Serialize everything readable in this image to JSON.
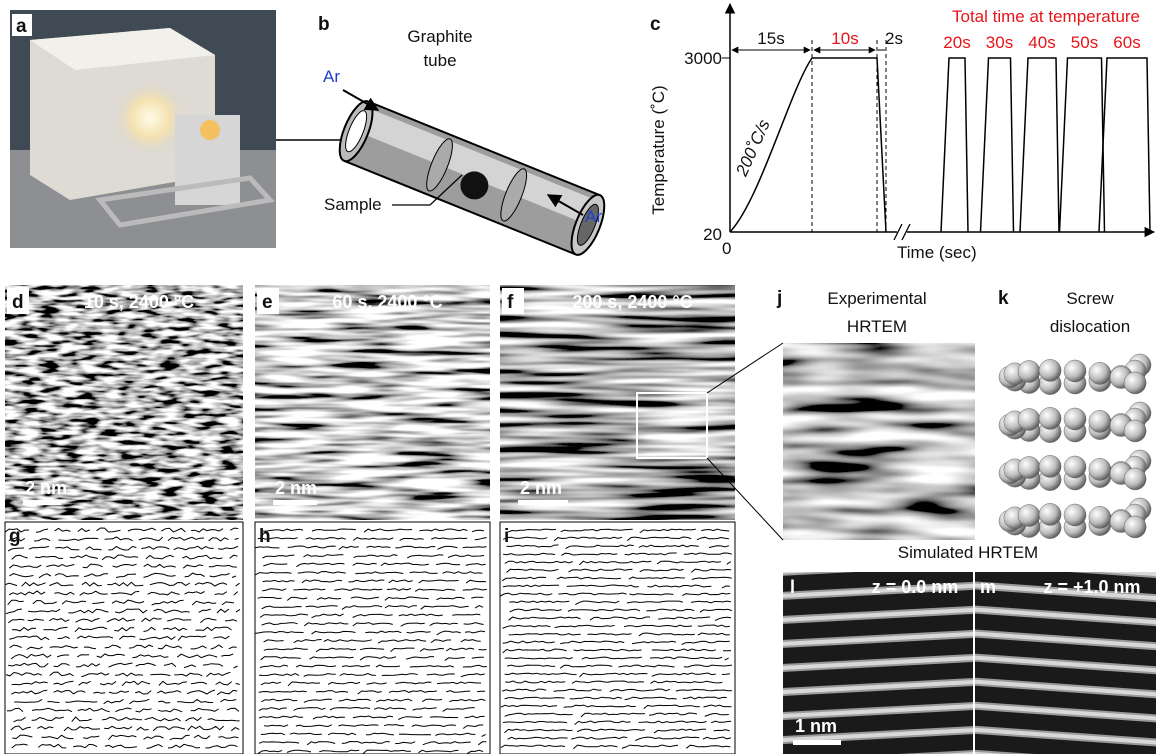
{
  "panel_labels": [
    "a",
    "b",
    "c",
    "d",
    "e",
    "f",
    "g",
    "h",
    "i",
    "j",
    "k",
    "l",
    "m"
  ],
  "schematic": {
    "tube_label": [
      "Graphite",
      "tube"
    ],
    "gas_in": "Ar",
    "gas_out": "Ar",
    "sample": "Sample"
  },
  "heating_profile": {
    "y_axis": "Temperature (˚C)",
    "y_ticks": [
      "3000",
      "20"
    ],
    "x_origin": "0",
    "x_axis": "Time (sec)",
    "ramp_time": "15s",
    "hold_time": "10s",
    "cool_time": "2s",
    "ramp_rate": "200˚C/s",
    "series_title": "Total time at temperature",
    "series_times": [
      "20s",
      "30s",
      "40s",
      "50s",
      "60s"
    ]
  },
  "micrographs": [
    {
      "condition": "10 s, 2400 °C",
      "scale": "2 nm"
    },
    {
      "condition": "60 s, 2400 °C",
      "scale": "2 nm"
    },
    {
      "condition": "200 s, 2400 °C",
      "scale": "2 nm"
    }
  ],
  "detail": {
    "experimental": [
      "Experimental",
      "HRTEM"
    ],
    "model": [
      "Screw",
      "dislocation"
    ],
    "simulated": "Simulated HRTEM",
    "simulations": [
      "z = 0.0 nm",
      "z = +1.0 nm"
    ],
    "scale": "1 nm"
  }
}
